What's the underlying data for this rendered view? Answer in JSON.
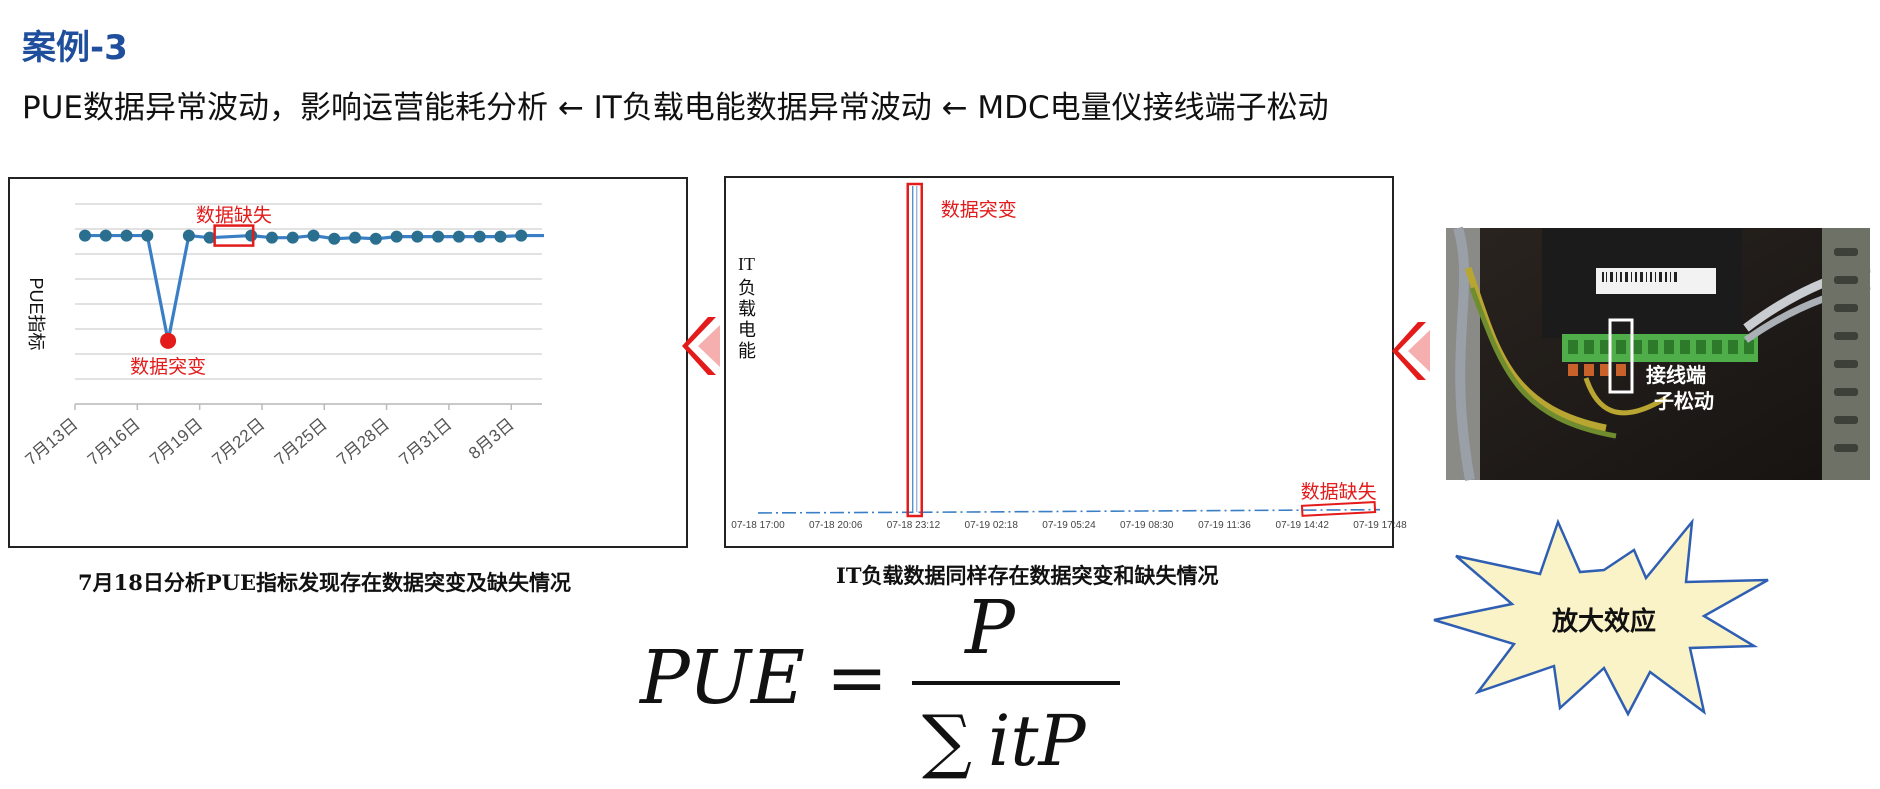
{
  "header": {
    "case_title": "案例-3",
    "subtitle": "PUE数据异常波动，影响运营能耗分析 ← IT负载电能数据异常波动 ← MDC电量仪接线端子松动"
  },
  "left_panel": {
    "caption": "7月18日分析PUE指标发现存在数据突变及缺失情况",
    "annotation_missing": "数据缺失",
    "annotation_spike": "数据突变",
    "arrow_icon": "chevron-left-icon"
  },
  "middle_panel": {
    "caption": "IT负载数据同样存在数据突变和缺失情况",
    "annotation_spike": "数据突变",
    "annotation_missing": "数据缺失",
    "arrow_icon": "chevron-left-icon"
  },
  "right_panel": {
    "photo_label_line1": "接线端",
    "photo_label_line2": "子松动",
    "burst_text": "放大效应"
  },
  "formula": {
    "lhs": "PUE",
    "numerator": "P",
    "denominator_sum": "∑",
    "denominator_term": "itP"
  },
  "colors": {
    "title_blue": "#1f4e9c",
    "line_blue": "#3a7fc5",
    "marker_teal": "#2a6f8f",
    "alert_red": "#e31b1b",
    "burst_fill": "#fbf3c8",
    "burst_stroke": "#2f5fb3"
  },
  "chart_data": [
    {
      "type": "line",
      "title": "",
      "xlabel": "",
      "ylabel": "PUE指标",
      "x_tick_labels": [
        "7月13日",
        "7月16日",
        "7月19日",
        "7月22日",
        "7月25日",
        "7月28日",
        "7月31日",
        "8月3日"
      ],
      "x": [
        "7月13日",
        "7月14日",
        "7月15日",
        "7月16日",
        "7月17日",
        "7月18日",
        "7月19日",
        "7月20日",
        "7月21日",
        "7月22日",
        "7月23日",
        "7月24日",
        "7月25日",
        "7月26日",
        "7月27日",
        "7月28日",
        "7月29日",
        "7月30日",
        "7月31日",
        "8月1日",
        "8月2日",
        "8月3日",
        "8月4日"
      ],
      "series": [
        {
          "values": [
            8.0,
            8.0,
            8.0,
            8.0,
            3.0,
            8.0,
            7.9,
            null,
            8.0,
            7.9,
            7.9,
            8.0,
            7.85,
            7.9,
            7.85,
            7.95,
            7.95,
            7.95,
            7.95,
            7.95,
            7.95,
            8.0,
            8.0
          ],
          "marker_indices": [
            0,
            1,
            2,
            3,
            4,
            5,
            6,
            8,
            9,
            10,
            11,
            12,
            13,
            14,
            15,
            16,
            17,
            18,
            19,
            20,
            21
          ],
          "highlight_index": 4
        }
      ],
      "ylim": [
        0,
        9.5
      ],
      "grid": true,
      "legend": "none"
    },
    {
      "type": "line",
      "title": "",
      "ylabel": "IT负载电能",
      "x_tick_labels": [
        "07-18 17:00",
        "07-18 20:06",
        "07-18 23:12",
        "07-19 02:18",
        "07-19 05:24",
        "07-19 08:30",
        "07-19 11:36",
        "07-19 14:42",
        "07-19 17:48"
      ],
      "x": [
        0.0,
        6.2,
        6.25,
        6.35,
        6.4,
        24.8
      ],
      "series": [
        {
          "values": [
            0.4,
            0.63,
            100.0,
            100.0,
            0.64,
            1.6
          ],
          "segments": [
            {
              "from_hour": 0.0,
              "to_hour": 6.2,
              "style": "dash-dot"
            },
            {
              "from_hour": 6.2,
              "to_hour": 6.4,
              "style": "spike"
            },
            {
              "from_hour": 6.4,
              "to_hour": 24.8,
              "style": "dash-dot"
            }
          ]
        }
      ],
      "xlim": [
        0,
        25.2
      ],
      "ylim": [
        0,
        100
      ],
      "grid": false,
      "legend": "none"
    }
  ]
}
